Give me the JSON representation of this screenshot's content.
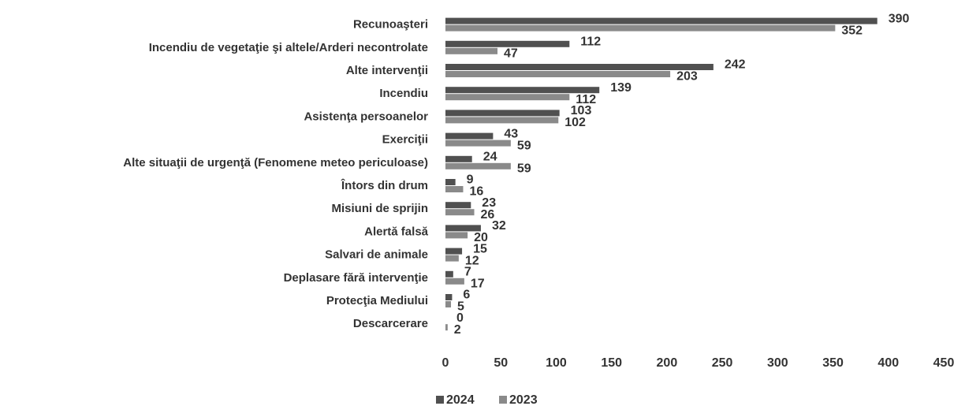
{
  "chart_data": {
    "type": "hbar",
    "categories": [
      "Recunoaşteri",
      "Incendiu de vegetaţie şi altele/Arderi necontrolate",
      "Alte intervenţii",
      "Incendiu",
      "Asistenţa persoanelor",
      "Exerciţii",
      "Alte situaţii de urgenţă (Fenomene meteo periculoase)",
      "Întors din drum",
      "Misiuni de sprijin",
      "Alertă falsă",
      "Salvari de animale",
      "Deplasare fără intervenţie",
      "Protecţia Mediului",
      "Descarcerare"
    ],
    "series": [
      {
        "name": "2024",
        "color": "#505050",
        "values": [
          390,
          112,
          242,
          139,
          103,
          43,
          24,
          9,
          23,
          32,
          15,
          7,
          6,
          0
        ]
      },
      {
        "name": "2023",
        "color": "#8a8a8a",
        "values": [
          352,
          47,
          203,
          112,
          102,
          59,
          59,
          16,
          26,
          20,
          12,
          17,
          5,
          2
        ]
      }
    ],
    "xlim": [
      0,
      450
    ],
    "xticks": [
      0,
      50,
      100,
      150,
      200,
      250,
      300,
      350,
      400,
      450
    ],
    "grid": false,
    "legend": "bottom"
  }
}
